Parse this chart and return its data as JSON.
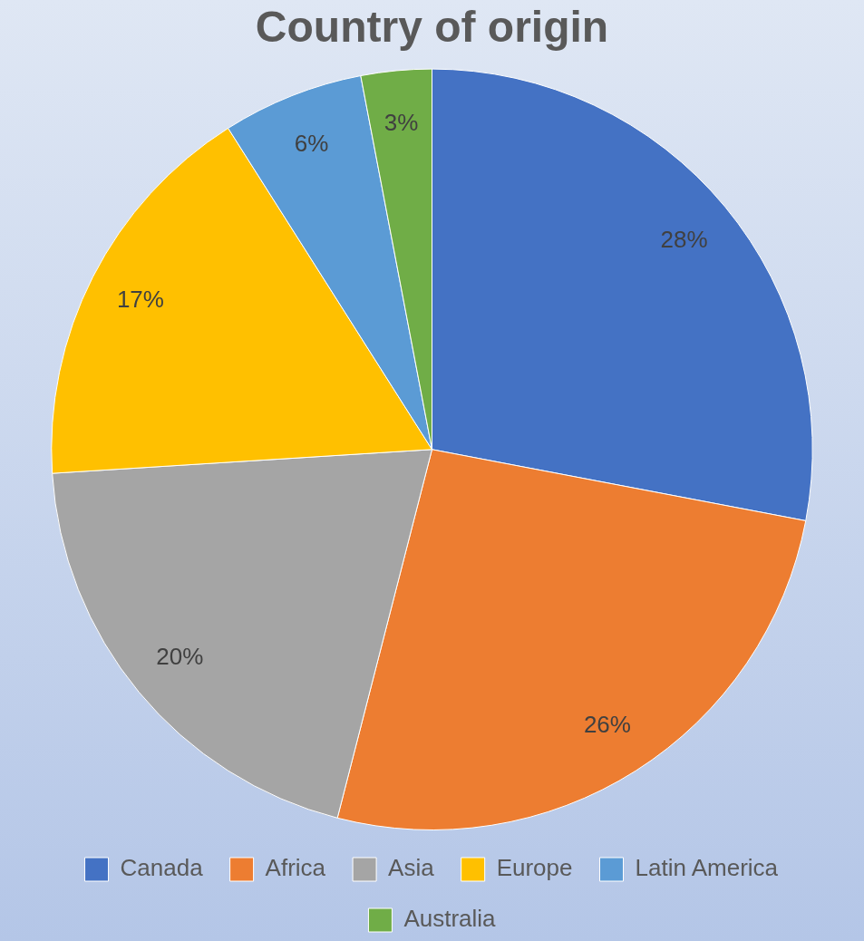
{
  "chart_data": {
    "type": "pie",
    "title": "Country of origin",
    "categories": [
      "Canada",
      "Africa",
      "Asia",
      "Europe",
      "Latin America",
      "Australia"
    ],
    "values": [
      28,
      26,
      20,
      17,
      6,
      3
    ],
    "colors": [
      "#4472c4",
      "#ed7d31",
      "#a5a5a5",
      "#ffc000",
      "#5b9bd5",
      "#70ad47"
    ],
    "value_labels": [
      "28%",
      "26%",
      "20%",
      "17%",
      "6%",
      "3%"
    ],
    "legend": "bottom"
  }
}
